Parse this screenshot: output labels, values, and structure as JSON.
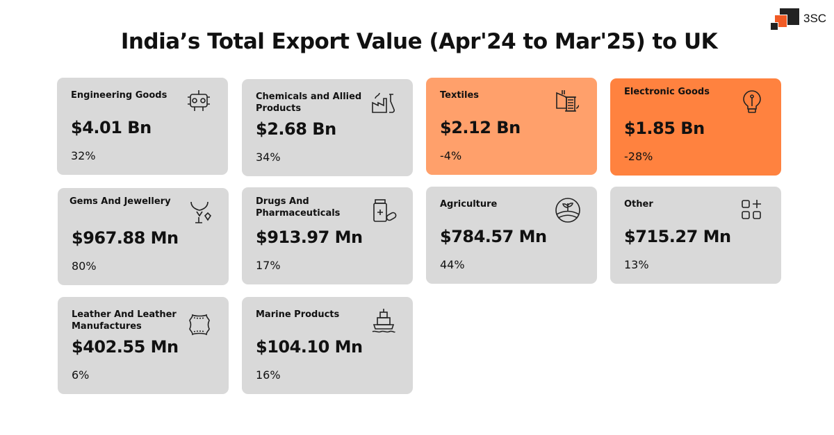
{
  "title": "India’s Total Export Value (Apr'24 to Mar'25) to UK",
  "logo": {
    "text": "3SC",
    "colors": [
      "#222222",
      "#F15A24"
    ]
  },
  "colors": {
    "card_default": "#D9D9D9",
    "card_textiles": "#FFA06B",
    "card_electronics": "#FF823F"
  },
  "cards": [
    {
      "name": "Engineering Goods",
      "value": "$4.01 Bn",
      "change": "32%",
      "icon": "engine-icon"
    },
    {
      "name": "Chemicals and Allied Products",
      "value": "$2.68 Bn",
      "change": "34%",
      "icon": "chemical-factory-icon"
    },
    {
      "name": "Textiles",
      "value": "$2.12 Bn",
      "change": "-4%",
      "icon": "thread-spool-icon"
    },
    {
      "name": "Electronic Goods",
      "value": "$1.85 Bn",
      "change": "-28%",
      "icon": "light-bulb-icon"
    },
    {
      "name": "Gems And Jewellery",
      "value": "$967.88 Mn",
      "change": "80%",
      "icon": "jewellery-icon"
    },
    {
      "name": "Drugs And Pharmaceuticals",
      "value": "$913.97 Mn",
      "change": "17%",
      "icon": "medicine-bottle-icon"
    },
    {
      "name": "Agriculture",
      "value": "$784.57 Mn",
      "change": "44%",
      "icon": "agriculture-field-icon"
    },
    {
      "name": "Other",
      "value": "$715.27 Mn",
      "change": "13%",
      "icon": "grid-plus-icon"
    },
    {
      "name": "Leather And Leather Manufactures",
      "value": "$402.55 Mn",
      "change": "6%",
      "icon": "leather-hide-icon"
    },
    {
      "name": "Marine Products",
      "value": "$104.10 Mn",
      "change": "16%",
      "icon": "ship-icon"
    }
  ]
}
